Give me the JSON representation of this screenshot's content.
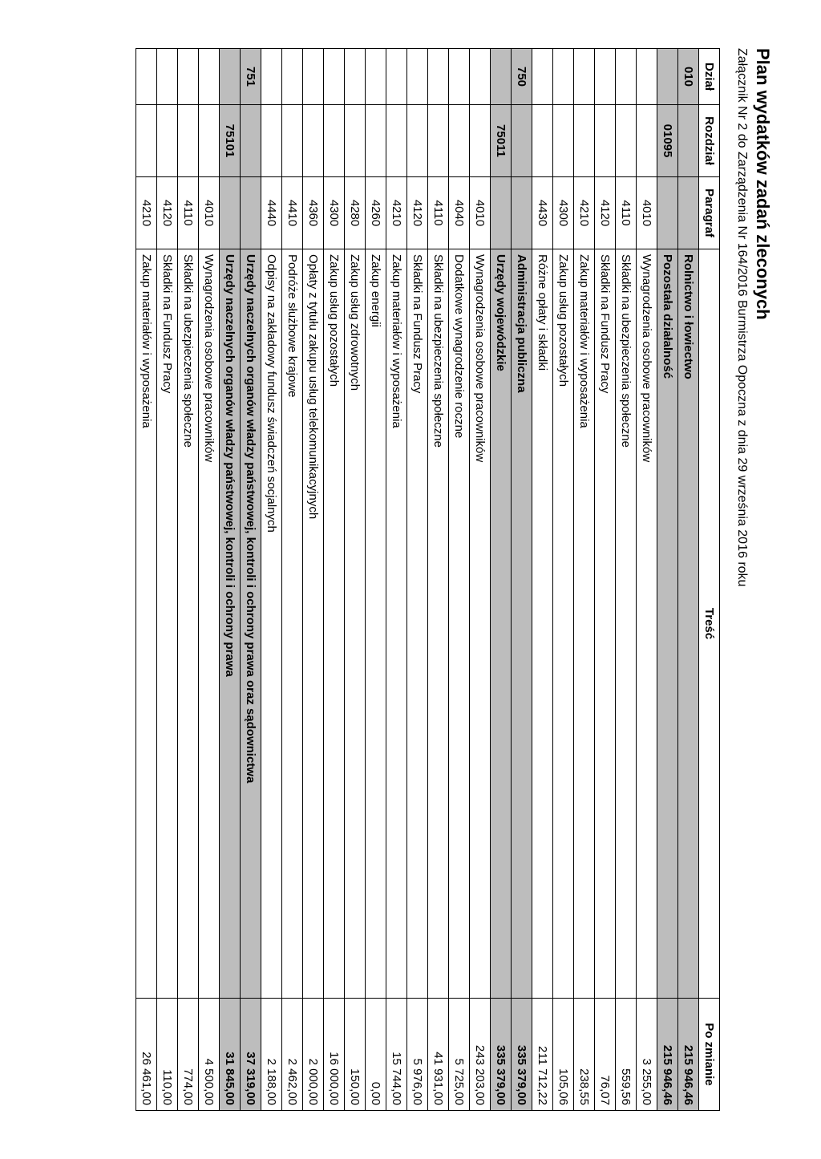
{
  "title": "Plan wydatków zadań zleconych",
  "subtitle": "Załącznik Nr 2 do Zarządzenia Nr 164/2016 Burmistrza Opoczna z dnia 29 września 2016 roku",
  "columns": {
    "dzial": "Dział",
    "rozdzial": "Rozdział",
    "paragraf": "Paragraf",
    "tresc": "Treść",
    "po_zmianie": "Po zmianie"
  },
  "rows": [
    {
      "dzial": "010",
      "rozdzial": "",
      "paragraf": "",
      "tresc": "Rolnictwo i łowiectwo",
      "po": "215 946,46",
      "shaded": true
    },
    {
      "dzial": "",
      "rozdzial": "01095",
      "paragraf": "",
      "tresc": "Pozostała działalność",
      "po": "215 946,46",
      "shaded": true
    },
    {
      "dzial": "",
      "rozdzial": "",
      "paragraf": "4010",
      "tresc": "Wynagrodzenia osobowe pracowników",
      "po": "3 255,00",
      "shaded": false
    },
    {
      "dzial": "",
      "rozdzial": "",
      "paragraf": "4110",
      "tresc": "Składki na ubezpieczenia społeczne",
      "po": "559,56",
      "shaded": false
    },
    {
      "dzial": "",
      "rozdzial": "",
      "paragraf": "4120",
      "tresc": "Składki na Fundusz Pracy",
      "po": "76,07",
      "shaded": false
    },
    {
      "dzial": "",
      "rozdzial": "",
      "paragraf": "4210",
      "tresc": "Zakup materiałów i wyposażenia",
      "po": "238,55",
      "shaded": false
    },
    {
      "dzial": "",
      "rozdzial": "",
      "paragraf": "4300",
      "tresc": "Zakup usług pozostałych",
      "po": "105,06",
      "shaded": false
    },
    {
      "dzial": "",
      "rozdzial": "",
      "paragraf": "4430",
      "tresc": "Różne opłaty i składki",
      "po": "211 712,22",
      "shaded": false
    },
    {
      "dzial": "750",
      "rozdzial": "",
      "paragraf": "",
      "tresc": "Administracja publiczna",
      "po": "335 379,00",
      "shaded": true
    },
    {
      "dzial": "",
      "rozdzial": "75011",
      "paragraf": "",
      "tresc": "Urzędy wojewódzkie",
      "po": "335 379,00",
      "shaded": true
    },
    {
      "dzial": "",
      "rozdzial": "",
      "paragraf": "4010",
      "tresc": "Wynagrodzenia osobowe pracowników",
      "po": "243 203,00",
      "shaded": false
    },
    {
      "dzial": "",
      "rozdzial": "",
      "paragraf": "4040",
      "tresc": "Dodatkowe wynagrodzenie roczne",
      "po": "5 725,00",
      "shaded": false
    },
    {
      "dzial": "",
      "rozdzial": "",
      "paragraf": "4110",
      "tresc": "Składki na ubezpieczenia społeczne",
      "po": "41 931,00",
      "shaded": false
    },
    {
      "dzial": "",
      "rozdzial": "",
      "paragraf": "4120",
      "tresc": "Składki na Fundusz Pracy",
      "po": "5 976,00",
      "shaded": false
    },
    {
      "dzial": "",
      "rozdzial": "",
      "paragraf": "4210",
      "tresc": "Zakup materiałów i wyposażenia",
      "po": "15 744,00",
      "shaded": false
    },
    {
      "dzial": "",
      "rozdzial": "",
      "paragraf": "4260",
      "tresc": "Zakup energii",
      "po": "0,00",
      "shaded": false
    },
    {
      "dzial": "",
      "rozdzial": "",
      "paragraf": "4280",
      "tresc": "Zakup usług zdrowotnych",
      "po": "150,00",
      "shaded": false
    },
    {
      "dzial": "",
      "rozdzial": "",
      "paragraf": "4300",
      "tresc": "Zakup usług pozostałych",
      "po": "16 000,00",
      "shaded": false
    },
    {
      "dzial": "",
      "rozdzial": "",
      "paragraf": "4360",
      "tresc": "Opłaty z tytułu zakupu usług telekomunikacyjnych",
      "po": "2 000,00",
      "shaded": false
    },
    {
      "dzial": "",
      "rozdzial": "",
      "paragraf": "4410",
      "tresc": "Podróże służbowe krajowe",
      "po": "2 462,00",
      "shaded": false
    },
    {
      "dzial": "",
      "rozdzial": "",
      "paragraf": "4440",
      "tresc": "Odpisy na zakładowy fundusz świadczeń socjalnych",
      "po": "2 188,00",
      "shaded": false
    },
    {
      "dzial": "751",
      "rozdzial": "",
      "paragraf": "",
      "tresc": "Urzędy naczelnych organów władzy państwowej, kontroli i ochrony prawa oraz sądownictwa",
      "po": "37 319,00",
      "shaded": true
    },
    {
      "dzial": "",
      "rozdzial": "75101",
      "paragraf": "",
      "tresc": "Urzędy naczelnych organów władzy państwowej, kontroli i ochrony prawa",
      "po": "31 845,00",
      "shaded": true
    },
    {
      "dzial": "",
      "rozdzial": "",
      "paragraf": "4010",
      "tresc": "Wynagrodzenia osobowe pracowników",
      "po": "4 500,00",
      "shaded": false
    },
    {
      "dzial": "",
      "rozdzial": "",
      "paragraf": "4110",
      "tresc": "Składki na ubezpieczenia społeczne",
      "po": "774,00",
      "shaded": false
    },
    {
      "dzial": "",
      "rozdzial": "",
      "paragraf": "4120",
      "tresc": "Składki na Fundusz Pracy",
      "po": "110,00",
      "shaded": false
    },
    {
      "dzial": "",
      "rozdzial": "",
      "paragraf": "4210",
      "tresc": "Zakup materiałów i wyposażenia",
      "po": "26 461,00",
      "shaded": false
    }
  ]
}
